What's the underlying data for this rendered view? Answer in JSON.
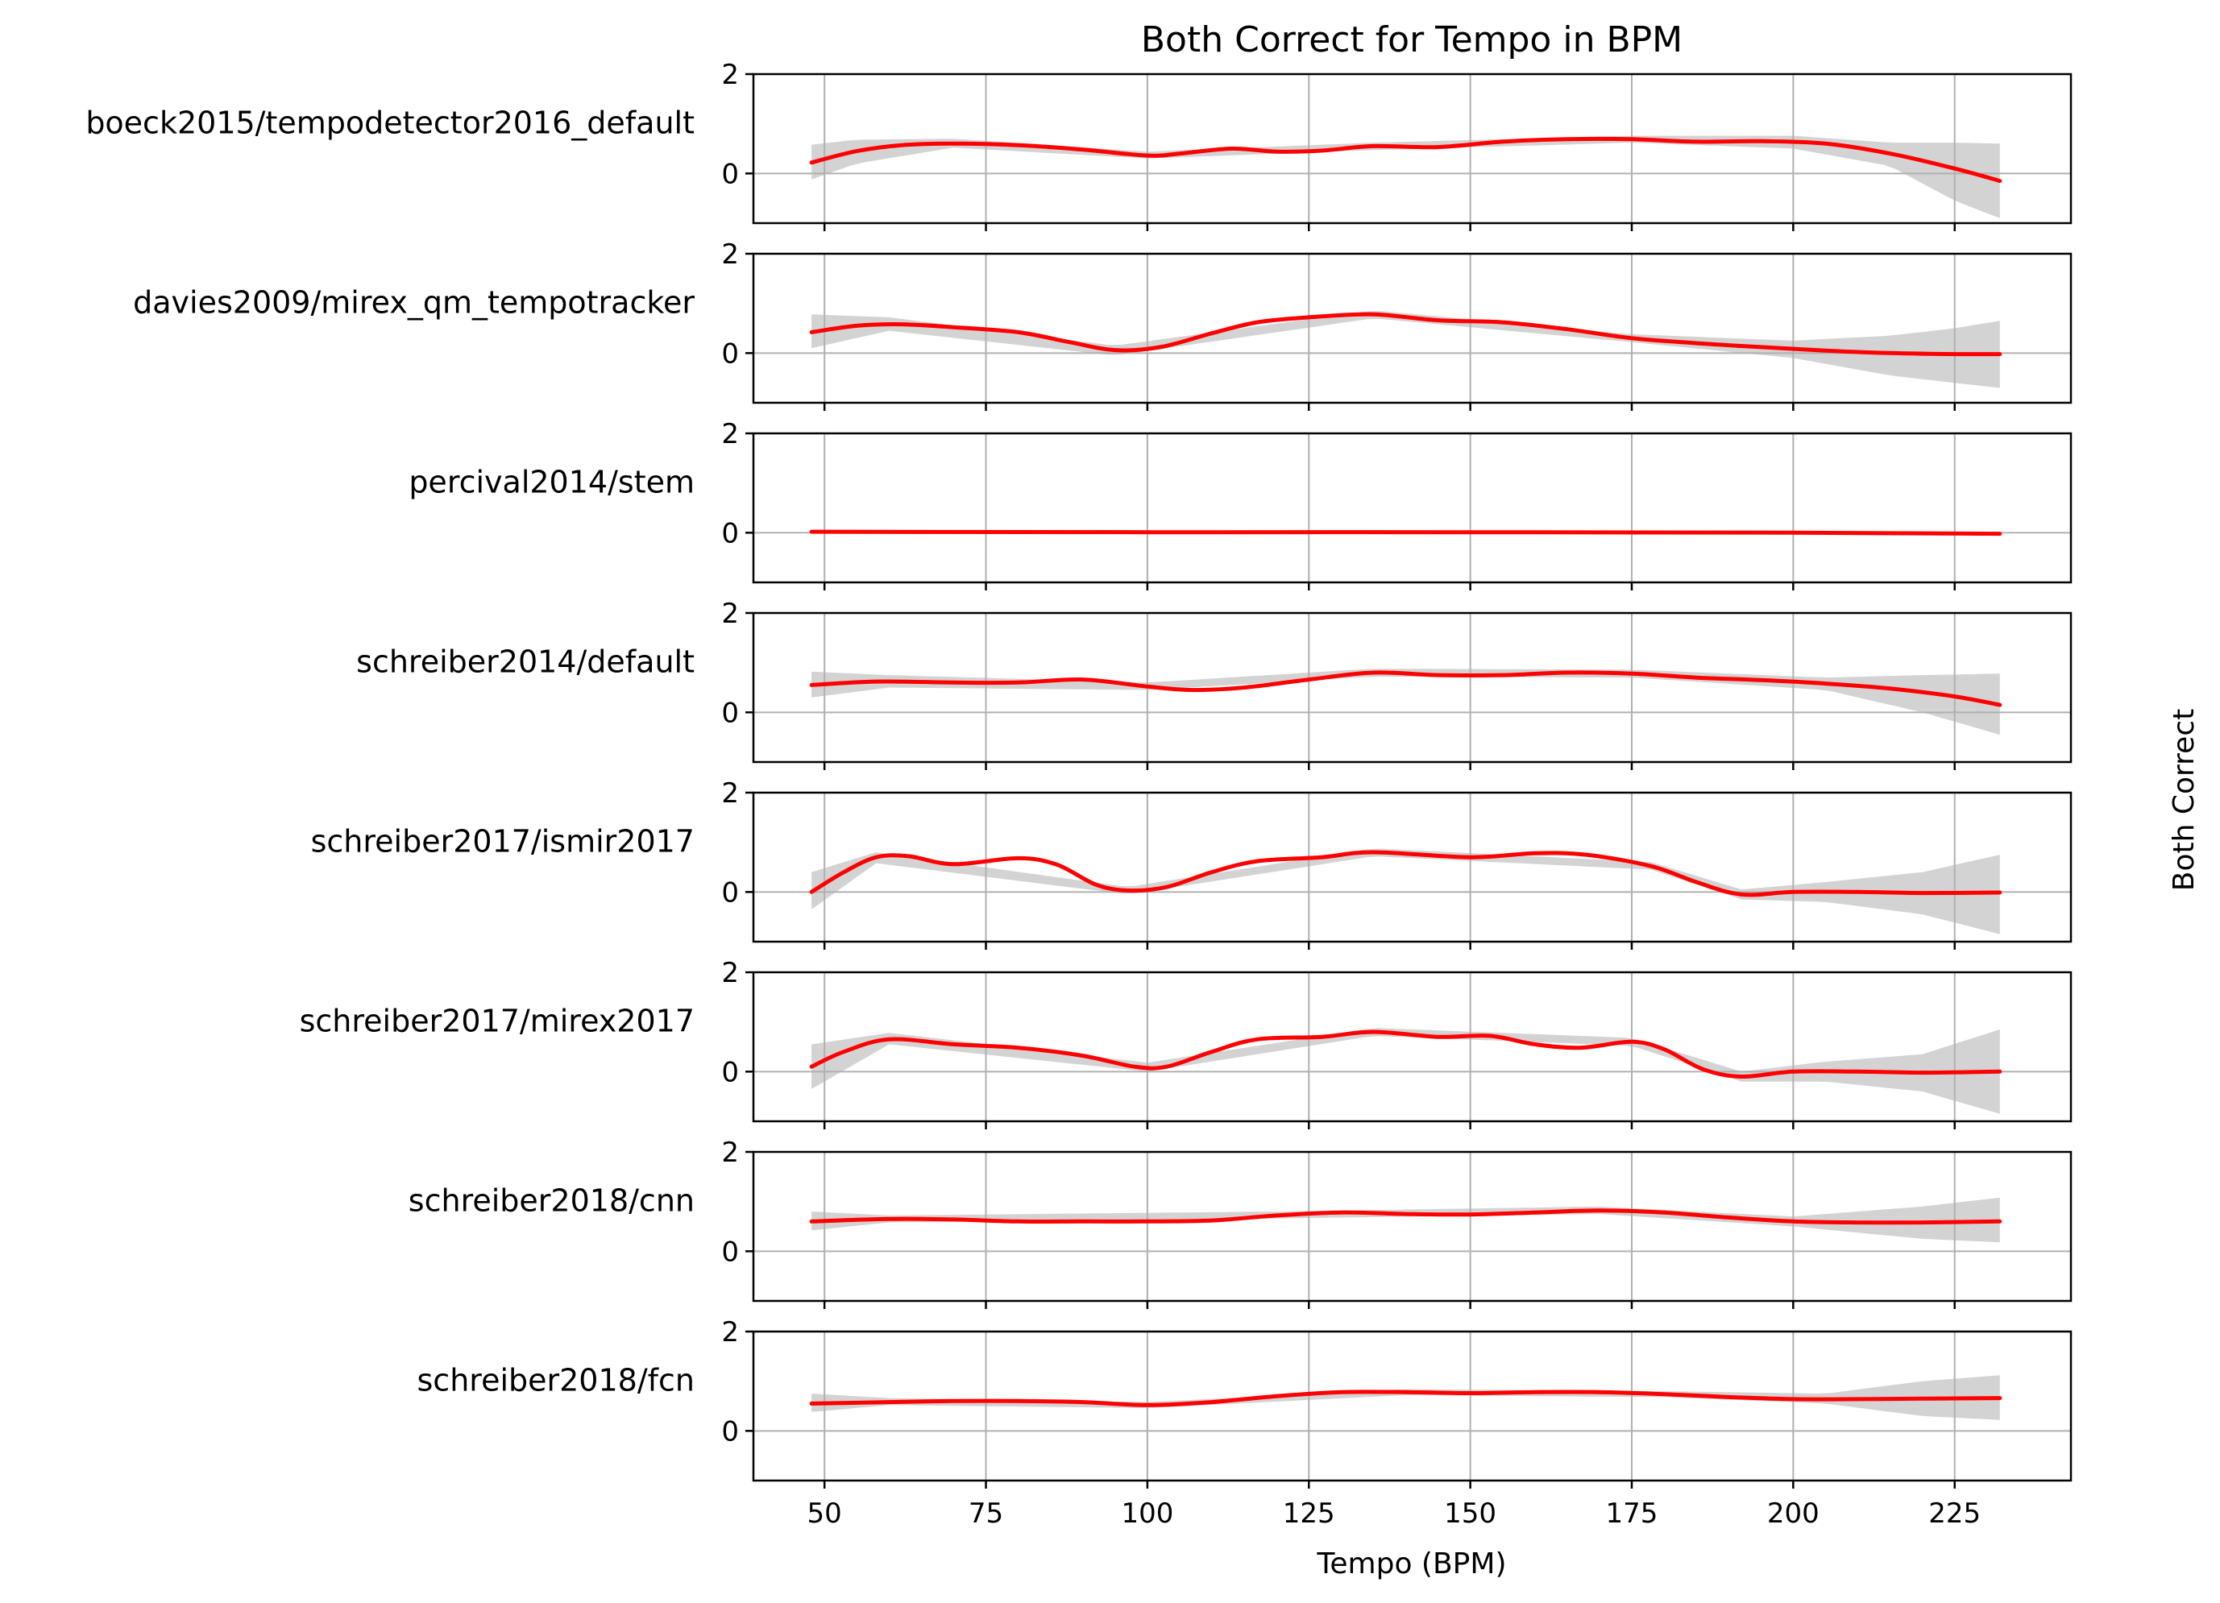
{
  "chart_data": {
    "type": "line",
    "title": "Both Correct for Tempo in BPM",
    "xlabel": "Tempo (BPM)",
    "ylabel": "Both Correct",
    "xlim": [
      39,
      243
    ],
    "ylim": [
      -1,
      2
    ],
    "xticks": [
      50,
      75,
      100,
      125,
      150,
      175,
      200,
      225
    ],
    "yticks": [
      0,
      2
    ],
    "grid": true,
    "colors": {
      "line": "#ff0000",
      "band": "#d3d3d3",
      "grid": "#b0b0b0",
      "axis": "#000000"
    },
    "series": [
      {
        "name": "boeck2015/tempodetector2016_default",
        "points": [
          [
            48,
            0.22
          ],
          [
            55,
            0.45
          ],
          [
            62,
            0.57
          ],
          [
            70,
            0.6
          ],
          [
            80,
            0.57
          ],
          [
            90,
            0.48
          ],
          [
            100,
            0.36
          ],
          [
            105,
            0.4
          ],
          [
            113,
            0.5
          ],
          [
            120,
            0.44
          ],
          [
            127,
            0.46
          ],
          [
            135,
            0.55
          ],
          [
            145,
            0.53
          ],
          [
            155,
            0.64
          ],
          [
            165,
            0.69
          ],
          [
            175,
            0.69
          ],
          [
            185,
            0.64
          ],
          [
            195,
            0.65
          ],
          [
            205,
            0.6
          ],
          [
            215,
            0.4
          ],
          [
            225,
            0.1
          ],
          [
            232,
            -0.15
          ]
        ],
        "band": [
          [
            48,
            -0.12,
            0.58
          ],
          [
            55,
            0.2,
            0.68
          ],
          [
            70,
            0.52,
            0.7
          ],
          [
            100,
            0.3,
            0.44
          ],
          [
            135,
            0.47,
            0.62
          ],
          [
            175,
            0.62,
            0.76
          ],
          [
            200,
            0.5,
            0.76
          ],
          [
            215,
            0.15,
            0.62
          ],
          [
            225,
            -0.55,
            0.62
          ],
          [
            232,
            -0.9,
            0.6
          ]
        ]
      },
      {
        "name": "davies2009/mirex_qm_tempotracker",
        "points": [
          [
            48,
            0.42
          ],
          [
            55,
            0.55
          ],
          [
            62,
            0.58
          ],
          [
            70,
            0.52
          ],
          [
            80,
            0.42
          ],
          [
            88,
            0.22
          ],
          [
            95,
            0.06
          ],
          [
            102,
            0.12
          ],
          [
            110,
            0.4
          ],
          [
            117,
            0.62
          ],
          [
            125,
            0.72
          ],
          [
            135,
            0.78
          ],
          [
            145,
            0.66
          ],
          [
            155,
            0.62
          ],
          [
            165,
            0.48
          ],
          [
            175,
            0.3
          ],
          [
            185,
            0.2
          ],
          [
            195,
            0.12
          ],
          [
            205,
            0.05
          ],
          [
            215,
            0.0
          ],
          [
            225,
            -0.02
          ],
          [
            232,
            -0.02
          ]
        ],
        "band": [
          [
            48,
            0.1,
            0.78
          ],
          [
            60,
            0.45,
            0.72
          ],
          [
            95,
            -0.05,
            0.15
          ],
          [
            135,
            0.7,
            0.86
          ],
          [
            175,
            0.22,
            0.38
          ],
          [
            200,
            -0.1,
            0.25
          ],
          [
            215,
            -0.45,
            0.35
          ],
          [
            225,
            -0.6,
            0.5
          ],
          [
            232,
            -0.7,
            0.65
          ]
        ]
      },
      {
        "name": "percival2014/stem",
        "points": [
          [
            48,
            0.02
          ],
          [
            100,
            0.01
          ],
          [
            150,
            0.01
          ],
          [
            200,
            0.0
          ],
          [
            232,
            -0.02
          ]
        ],
        "band": [
          [
            48,
            0.0,
            0.04
          ],
          [
            232,
            -0.04,
            0.0
          ]
        ]
      },
      {
        "name": "schreiber2014/default",
        "points": [
          [
            48,
            0.55
          ],
          [
            58,
            0.62
          ],
          [
            70,
            0.6
          ],
          [
            80,
            0.6
          ],
          [
            90,
            0.66
          ],
          [
            100,
            0.52
          ],
          [
            107,
            0.45
          ],
          [
            115,
            0.5
          ],
          [
            125,
            0.66
          ],
          [
            135,
            0.8
          ],
          [
            145,
            0.75
          ],
          [
            155,
            0.75
          ],
          [
            165,
            0.8
          ],
          [
            175,
            0.78
          ],
          [
            185,
            0.7
          ],
          [
            195,
            0.65
          ],
          [
            205,
            0.58
          ],
          [
            215,
            0.48
          ],
          [
            225,
            0.32
          ],
          [
            232,
            0.15
          ]
        ],
        "band": [
          [
            48,
            0.3,
            0.82
          ],
          [
            60,
            0.5,
            0.75
          ],
          [
            100,
            0.45,
            0.6
          ],
          [
            135,
            0.72,
            0.88
          ],
          [
            175,
            0.7,
            0.86
          ],
          [
            205,
            0.45,
            0.7
          ],
          [
            220,
            0.0,
            0.75
          ],
          [
            232,
            -0.45,
            0.78
          ]
        ]
      },
      {
        "name": "schreiber2017/ismir2017",
        "points": [
          [
            48,
            0.0
          ],
          [
            53,
            0.4
          ],
          [
            58,
            0.7
          ],
          [
            63,
            0.72
          ],
          [
            70,
            0.56
          ],
          [
            80,
            0.68
          ],
          [
            86,
            0.55
          ],
          [
            92,
            0.15
          ],
          [
            97,
            0.03
          ],
          [
            103,
            0.1
          ],
          [
            110,
            0.4
          ],
          [
            117,
            0.62
          ],
          [
            127,
            0.7
          ],
          [
            135,
            0.8
          ],
          [
            150,
            0.7
          ],
          [
            160,
            0.78
          ],
          [
            168,
            0.75
          ],
          [
            178,
            0.52
          ],
          [
            185,
            0.2
          ],
          [
            192,
            -0.05
          ],
          [
            200,
            0.0
          ],
          [
            210,
            0.0
          ],
          [
            220,
            -0.02
          ],
          [
            232,
            -0.01
          ]
        ],
        "band": [
          [
            48,
            -0.35,
            0.4
          ],
          [
            58,
            0.58,
            0.8
          ],
          [
            97,
            -0.05,
            0.1
          ],
          [
            135,
            0.72,
            0.88
          ],
          [
            178,
            0.45,
            0.6
          ],
          [
            192,
            -0.15,
            0.05
          ],
          [
            205,
            -0.2,
            0.2
          ],
          [
            220,
            -0.45,
            0.4
          ],
          [
            232,
            -0.85,
            0.75
          ]
        ]
      },
      {
        "name": "schreiber2017/mirex2017",
        "points": [
          [
            48,
            0.1
          ],
          [
            53,
            0.4
          ],
          [
            60,
            0.65
          ],
          [
            70,
            0.55
          ],
          [
            80,
            0.48
          ],
          [
            90,
            0.32
          ],
          [
            98,
            0.1
          ],
          [
            103,
            0.1
          ],
          [
            110,
            0.4
          ],
          [
            117,
            0.65
          ],
          [
            127,
            0.7
          ],
          [
            135,
            0.8
          ],
          [
            145,
            0.7
          ],
          [
            153,
            0.72
          ],
          [
            160,
            0.55
          ],
          [
            167,
            0.48
          ],
          [
            175,
            0.6
          ],
          [
            180,
            0.45
          ],
          [
            186,
            0.05
          ],
          [
            192,
            -0.1
          ],
          [
            200,
            0.0
          ],
          [
            210,
            0.0
          ],
          [
            220,
            -0.02
          ],
          [
            232,
            0.0
          ]
        ],
        "band": [
          [
            48,
            -0.35,
            0.55
          ],
          [
            60,
            0.55,
            0.78
          ],
          [
            100,
            0.0,
            0.18
          ],
          [
            135,
            0.72,
            0.88
          ],
          [
            175,
            0.52,
            0.68
          ],
          [
            192,
            -0.2,
            0.0
          ],
          [
            205,
            -0.2,
            0.2
          ],
          [
            220,
            -0.4,
            0.35
          ],
          [
            232,
            -0.85,
            0.85
          ]
        ]
      },
      {
        "name": "schreiber2018/cnn",
        "points": [
          [
            48,
            0.6
          ],
          [
            60,
            0.65
          ],
          [
            70,
            0.64
          ],
          [
            80,
            0.6
          ],
          [
            90,
            0.6
          ],
          [
            100,
            0.6
          ],
          [
            110,
            0.62
          ],
          [
            120,
            0.72
          ],
          [
            130,
            0.78
          ],
          [
            140,
            0.75
          ],
          [
            150,
            0.74
          ],
          [
            160,
            0.78
          ],
          [
            170,
            0.82
          ],
          [
            180,
            0.78
          ],
          [
            190,
            0.68
          ],
          [
            200,
            0.6
          ],
          [
            210,
            0.58
          ],
          [
            220,
            0.58
          ],
          [
            232,
            0.6
          ]
        ],
        "band": [
          [
            48,
            0.42,
            0.8
          ],
          [
            60,
            0.58,
            0.72
          ],
          [
            120,
            0.66,
            0.8
          ],
          [
            170,
            0.75,
            0.9
          ],
          [
            200,
            0.5,
            0.7
          ],
          [
            220,
            0.25,
            0.9
          ],
          [
            232,
            0.18,
            1.08
          ]
        ]
      },
      {
        "name": "schreiber2018/fcn",
        "points": [
          [
            48,
            0.55
          ],
          [
            60,
            0.58
          ],
          [
            70,
            0.6
          ],
          [
            80,
            0.6
          ],
          [
            90,
            0.58
          ],
          [
            100,
            0.52
          ],
          [
            110,
            0.58
          ],
          [
            120,
            0.7
          ],
          [
            130,
            0.78
          ],
          [
            140,
            0.78
          ],
          [
            150,
            0.76
          ],
          [
            160,
            0.78
          ],
          [
            170,
            0.78
          ],
          [
            180,
            0.74
          ],
          [
            190,
            0.68
          ],
          [
            200,
            0.64
          ],
          [
            210,
            0.64
          ],
          [
            220,
            0.65
          ],
          [
            232,
            0.66
          ]
        ],
        "band": [
          [
            48,
            0.38,
            0.75
          ],
          [
            60,
            0.52,
            0.66
          ],
          [
            100,
            0.46,
            0.58
          ],
          [
            140,
            0.72,
            0.84
          ],
          [
            180,
            0.68,
            0.8
          ],
          [
            205,
            0.55,
            0.75
          ],
          [
            220,
            0.3,
            1.0
          ],
          [
            232,
            0.22,
            1.12
          ]
        ]
      }
    ]
  }
}
